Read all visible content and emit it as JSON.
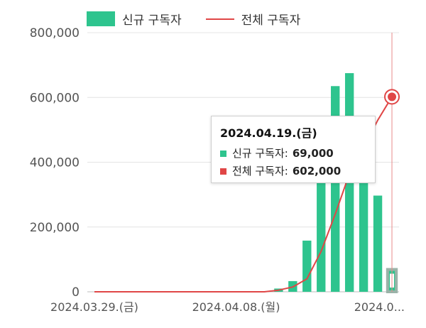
{
  "chart_data": {
    "type": "bar",
    "legend": {
      "position": "top-left"
    },
    "series": [
      {
        "name": "신규 구독자",
        "type": "bar",
        "color": "#2ec48e",
        "values": [
          0,
          0,
          0,
          0,
          0,
          0,
          0,
          0,
          0,
          0,
          0,
          0,
          0,
          10000,
          33000,
          158000,
          345000,
          635000,
          675000,
          460000,
          297000,
          69000
        ]
      },
      {
        "name": "전체 구독자",
        "type": "line",
        "color": "#e04646",
        "values": [
          0,
          0,
          0,
          0,
          0,
          0,
          0,
          0,
          0,
          0,
          0,
          0,
          0,
          5000,
          15000,
          40000,
          125000,
          240000,
          365000,
          445000,
          530000,
          602000
        ]
      }
    ],
    "x_ticks": [
      "2024.03.29.(금)",
      "2024.04.08.(월)",
      "2024.0..."
    ],
    "x_tick_index": [
      0,
      10,
      20
    ],
    "y_ticks": [
      "0",
      "200,000",
      "400,000",
      "600,000",
      "800,000"
    ],
    "y_tick_values": [
      0,
      200000,
      400000,
      600000,
      800000
    ],
    "ylim": [
      0,
      800000
    ],
    "grid": "horizontal",
    "highlight_index": 21
  },
  "tooltip": {
    "title": "2024.04.19.(금)",
    "rows": [
      {
        "label": "신규 구독자:",
        "value": "69,000",
        "color": "#2ec48e"
      },
      {
        "label": "전체 구독자:",
        "value": "602,000",
        "color": "#e04646"
      }
    ]
  }
}
